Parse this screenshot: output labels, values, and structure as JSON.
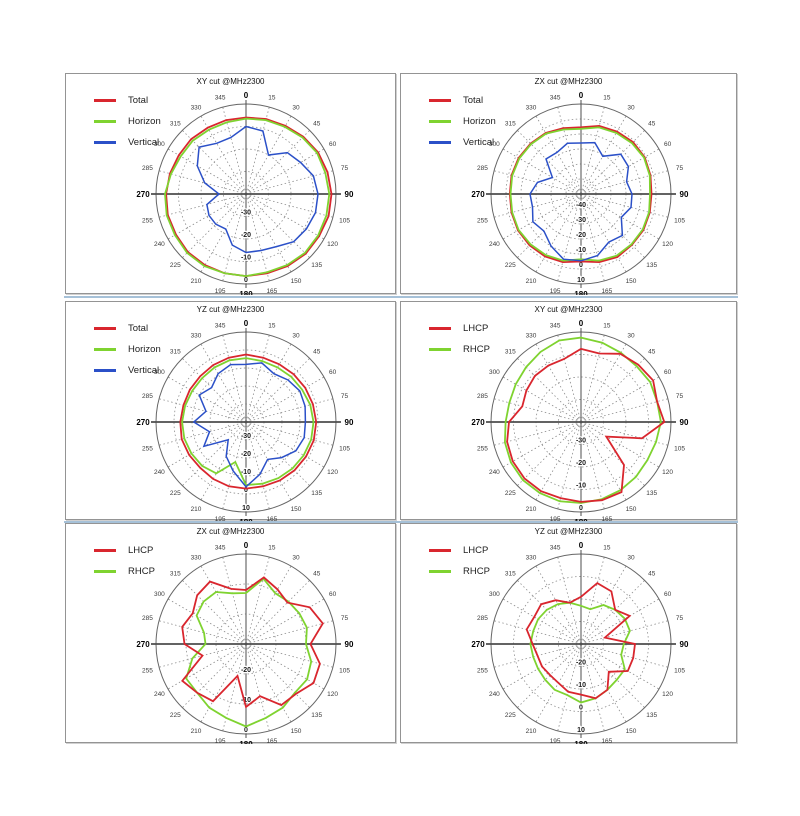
{
  "style": {
    "page_background": "#ffffff",
    "panel_border": "#949494",
    "separator": "#a6c1d8",
    "grid": "#8f8f8f",
    "axis": "#4d4d4d",
    "outer_ring": "#666666",
    "angle_label": "#3a3a3a",
    "cardinal_label": "#000000",
    "radial_label": "#1a1a1a",
    "series_red": "#d9262e",
    "series_green": "#7fd330",
    "series_blue": "#2b50c8"
  },
  "chart_data": [
    {
      "type": "line",
      "plot": "polar",
      "title": "XY cut @MHz2300",
      "angles_deg": [
        0,
        15,
        30,
        45,
        60,
        75,
        90,
        105,
        120,
        135,
        150,
        165,
        180,
        195,
        210,
        225,
        240,
        255,
        270,
        285,
        300,
        315,
        330,
        345
      ],
      "radial": {
        "min": -40,
        "max": 0,
        "ring_step": 10,
        "tick_labels": [
          -30,
          -20,
          -10,
          0
        ],
        "unit": "dB"
      },
      "legend_position": "top-left",
      "series": [
        {
          "name": "Total",
          "color": "#d9262e",
          "values": [
            -6,
            -5.5,
            -5,
            -4,
            -3,
            -2.5,
            -2,
            -2,
            -2.5,
            -2.5,
            -3,
            -3.5,
            -3.5,
            -3.5,
            -3.5,
            -3.5,
            -4,
            -4,
            -4.5,
            -5,
            -5.5,
            -5.5,
            -6,
            -6
          ]
        },
        {
          "name": "Horizon",
          "color": "#7fd330",
          "values": [
            -6.5,
            -6,
            -5.5,
            -4.5,
            -3.5,
            -3.5,
            -3,
            -3,
            -3,
            -3,
            -3.5,
            -4,
            -3.5,
            -3.5,
            -3,
            -3,
            -3.5,
            -3.5,
            -4,
            -5.5,
            -6.5,
            -6.5,
            -7,
            -7
          ]
        },
        {
          "name": "Vertical",
          "color": "#2b50c8",
          "values": [
            -10,
            -11,
            -20,
            -14,
            -12,
            -9,
            -8,
            -8,
            -9,
            -10,
            -13,
            -14,
            -14,
            -16.5,
            -22,
            -21,
            -21,
            -22,
            -28,
            -21,
            -15,
            -10.5,
            -14,
            -14
          ]
        }
      ]
    },
    {
      "type": "line",
      "plot": "polar",
      "title": "ZX cut @MHz2300",
      "angles_deg": [
        0,
        15,
        30,
        45,
        60,
        75,
        90,
        105,
        120,
        135,
        150,
        165,
        180,
        195,
        210,
        225,
        240,
        255,
        270,
        285,
        300,
        315,
        330,
        345
      ],
      "radial": {
        "min": -50,
        "max": 10,
        "ring_step": 10,
        "tick_labels": [
          -40,
          -30,
          -20,
          -10,
          0,
          10
        ],
        "unit": "dB"
      },
      "legend_position": "top-left",
      "series": [
        {
          "name": "Total",
          "color": "#d9262e",
          "values": [
            -5.5,
            -3,
            -2,
            -1,
            -1,
            -2,
            -3,
            -2.5,
            -2,
            -2,
            -1.5,
            -3,
            -5,
            -3,
            -2,
            -1.5,
            -1.5,
            -2,
            -2.5,
            -2,
            -2,
            -2.5,
            -3,
            -4.5
          ]
        },
        {
          "name": "Horizon",
          "color": "#7fd330",
          "values": [
            -6.5,
            -4,
            -3,
            -2,
            -1.5,
            -2.5,
            -4,
            -3,
            -2.5,
            -2.5,
            -2.5,
            -4,
            -6.5,
            -4,
            -3,
            -2.5,
            -2,
            -2.5,
            -3,
            -2.5,
            -2.5,
            -3,
            -3.5,
            -5.5
          ]
        },
        {
          "name": "Vertical",
          "color": "#2b50c8",
          "values": [
            -16,
            -14.5,
            -21,
            -12.5,
            -13.5,
            -18.5,
            -16,
            -15.5,
            -19,
            -11,
            -13,
            -7.5,
            -5.5,
            -5,
            -10,
            -15,
            -13,
            -16.5,
            -16,
            -20,
            -28,
            -17,
            -18,
            -15
          ]
        }
      ]
    },
    {
      "type": "line",
      "plot": "polar",
      "title": "YZ cut @MHz2300",
      "angles_deg": [
        0,
        15,
        30,
        45,
        60,
        75,
        90,
        105,
        120,
        135,
        150,
        165,
        180,
        195,
        210,
        225,
        240,
        255,
        270,
        285,
        300,
        315,
        330,
        345
      ],
      "radial": {
        "min": -40,
        "max": 10,
        "ring_step": 10,
        "tick_labels": [
          -30,
          -20,
          -10,
          0,
          10
        ],
        "unit": "dB"
      },
      "legend_position": "top-left",
      "series": [
        {
          "name": "Total",
          "color": "#d9262e",
          "values": [
            -2.5,
            -3,
            -3,
            -2.5,
            -2,
            -1.5,
            -1,
            -1,
            -1.5,
            -2,
            -2.5,
            -3,
            -3,
            -3,
            -3.5,
            -4,
            -3.5,
            -3,
            -3.5,
            -4,
            -4,
            -4,
            -3.5,
            -3
          ]
        },
        {
          "name": "Horizon",
          "color": "#7fd330",
          "values": [
            -4.5,
            -5,
            -5,
            -4.5,
            -4,
            -3,
            -2.5,
            -2.5,
            -3,
            -3.5,
            -4,
            -4.5,
            -5,
            -17,
            -7,
            -5.5,
            -5,
            -4.5,
            -4.5,
            -5,
            -5.5,
            -5.5,
            -5,
            -4.5
          ]
        },
        {
          "name": "Vertical",
          "color": "#2b50c8",
          "values": [
            -8,
            -6,
            -9,
            -7,
            -5.5,
            -6,
            -7,
            -6.5,
            -8,
            -12,
            -16,
            -10,
            -4,
            -12,
            -18,
            -26,
            -13,
            -19,
            -11,
            -17,
            -10,
            -13,
            -9,
            -7
          ]
        }
      ]
    },
    {
      "type": "line",
      "plot": "polar",
      "title": "XY cut @MHz2300",
      "angles_deg": [
        0,
        15,
        30,
        45,
        60,
        75,
        90,
        105,
        120,
        135,
        150,
        165,
        180,
        195,
        210,
        225,
        240,
        255,
        270,
        285,
        300,
        315,
        330,
        345
      ],
      "radial": {
        "min": -40,
        "max": 0,
        "ring_step": 10,
        "tick_labels": [
          -30,
          -20,
          -10,
          0
        ],
        "unit": "dB"
      },
      "legend_position": "top-left",
      "series": [
        {
          "name": "LHCP",
          "color": "#d9262e",
          "values": [
            -7.5,
            -8.5,
            -5,
            -4,
            -3,
            -5,
            -3,
            -12,
            -27,
            -13,
            -4,
            -4,
            -4.5,
            -5,
            -4.5,
            -4.5,
            -5,
            -6,
            -8,
            -13,
            -12,
            -11,
            -11,
            -11
          ]
        },
        {
          "name": "RHCP",
          "color": "#7fd330",
          "values": [
            -2.5,
            -3.5,
            -4.5,
            -5,
            -4.5,
            -5,
            -4.5,
            -5.5,
            -6,
            -5.5,
            -5,
            -4.5,
            -4,
            -3.5,
            -3.5,
            -3.5,
            -4,
            -5,
            -6.5,
            -7,
            -6.5,
            -5.5,
            -4,
            -2.5
          ]
        }
      ]
    },
    {
      "type": "line",
      "plot": "polar",
      "title": "ZX cut @MHz2300",
      "angles_deg": [
        0,
        15,
        30,
        45,
        60,
        75,
        90,
        105,
        120,
        135,
        150,
        165,
        180,
        195,
        210,
        225,
        240,
        255,
        270,
        285,
        300,
        315,
        330,
        345
      ],
      "radial": {
        "min": -30,
        "max": 0,
        "ring_step": 10,
        "tick_labels": [
          -20,
          -10,
          0
        ],
        "unit": "dB"
      },
      "legend_position": "top-left",
      "series": [
        {
          "name": "LHCP",
          "color": "#d9262e",
          "values": [
            -12,
            -7,
            -9,
            -10.5,
            -5.5,
            -3.5,
            -8.5,
            -4.5,
            -4,
            -6.5,
            -6.5,
            -12,
            -9,
            -19,
            -8,
            -7,
            -5.5,
            -15,
            -9.5,
            -8,
            -9.5,
            -7,
            -6,
            -11
          ]
        },
        {
          "name": "RHCP",
          "color": "#7fd330",
          "values": [
            -13,
            -7.5,
            -10.5,
            -10,
            -9.5,
            -9,
            -10,
            -7.5,
            -6.5,
            -7,
            -5.5,
            -4.5,
            -2.5,
            -4.5,
            -5.5,
            -7,
            -7,
            -11.5,
            -16.5,
            -15.5,
            -11,
            -10,
            -10,
            -12.5
          ]
        }
      ]
    },
    {
      "type": "line",
      "plot": "polar",
      "title": "YZ cut @MHz2300",
      "angles_deg": [
        0,
        15,
        30,
        45,
        60,
        75,
        90,
        105,
        120,
        135,
        150,
        165,
        180,
        195,
        210,
        225,
        240,
        255,
        270,
        285,
        300,
        315,
        330,
        345
      ],
      "radial": {
        "min": -30,
        "max": 10,
        "ring_step": 10,
        "tick_labels": [
          -20,
          -10,
          0,
          10
        ],
        "unit": "dB"
      },
      "legend_position": "top-left",
      "series": [
        {
          "name": "LHCP",
          "color": "#d9262e",
          "values": [
            -9,
            -2,
            -3,
            -8.5,
            -5,
            -19,
            -6,
            -6,
            -6,
            -12.5,
            -6.5,
            -5,
            -7.5,
            -8,
            -10,
            -10.5,
            -10,
            -10,
            -8.5,
            -5,
            -6,
            -5,
            -7.5,
            -11
          ]
        },
        {
          "name": "RHCP",
          "color": "#7fd330",
          "values": [
            -13,
            -14,
            -10,
            -8.5,
            -7.5,
            -7.5,
            -11,
            -11.5,
            -7.5,
            -7.5,
            -6.5,
            -5,
            -4,
            -6.5,
            -6.5,
            -7.5,
            -8,
            -8,
            -7.5,
            -8,
            -8,
            -8.5,
            -9.5,
            -11
          ]
        }
      ]
    }
  ]
}
